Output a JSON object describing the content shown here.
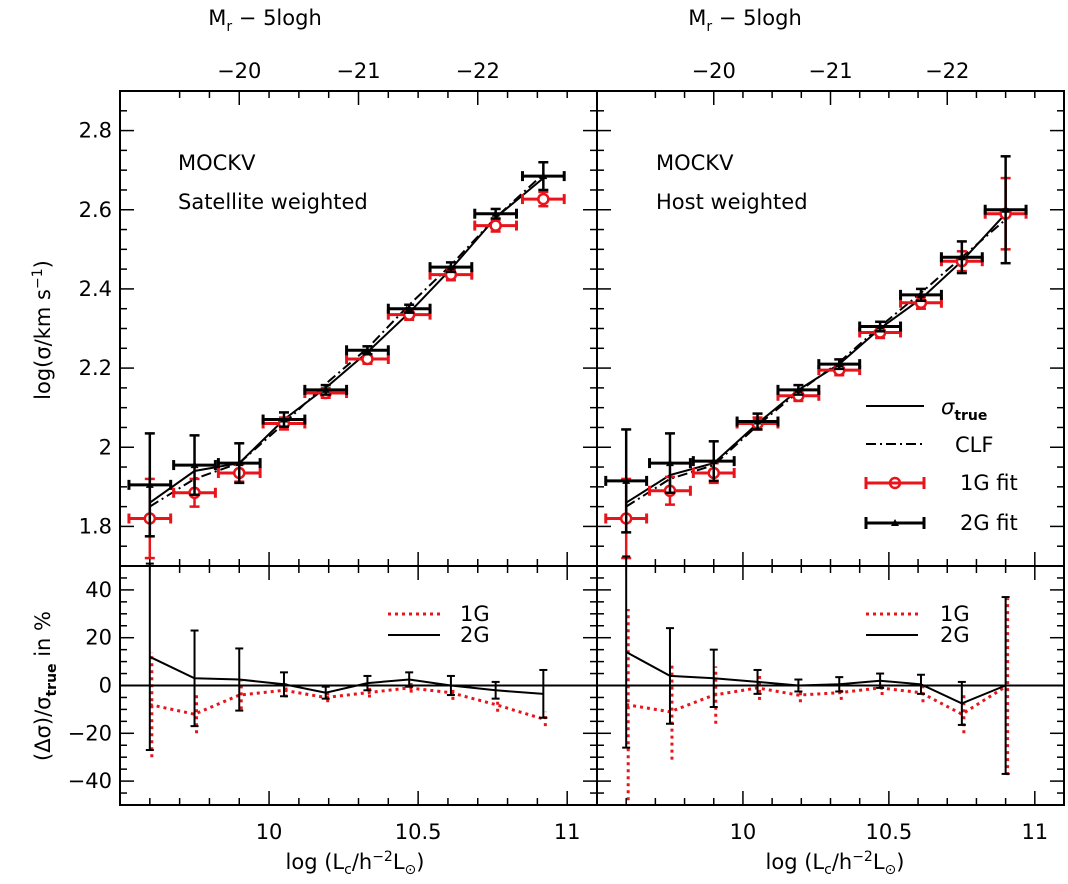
{
  "figure": {
    "top_axis_title": "M",
    "top_axis_title_sub": "r",
    "top_axis_title_rest": " − 5logh",
    "top_ticks": [
      "−20",
      "−21",
      "−22"
    ],
    "bottom_axis_title_pre": "log (L",
    "bottom_axis_title_sub": "c",
    "bottom_axis_title_mid": "/h",
    "bottom_axis_title_sup": "−2",
    "bottom_axis_title_mid2": "L",
    "bottom_axis_title_sub2": "⊙",
    "bottom_axis_title_post": ")",
    "upper_ylabel_pre": "log(σ/km s",
    "upper_ylabel_sup": "−1",
    "upper_ylabel_post": ")",
    "lower_ylabel_pre": "(Δσ)/σ",
    "lower_ylabel_sub": "true",
    "lower_ylabel_post": " in %",
    "panels": [
      {
        "line1": "MOCKV",
        "line2": "Satellite weighted"
      },
      {
        "line1": "MOCKV",
        "line2": "Host weighted"
      }
    ],
    "legend_upper": {
      "sigma_true": "σ",
      "sigma_true_sub": "true",
      "clf": "CLF",
      "fit1": "1G fit",
      "fit2": "2G fit"
    },
    "legend_lower": {
      "a": "1G",
      "b": "2G"
    },
    "colors": {
      "red": "#e8141b",
      "black": "#000000"
    }
  },
  "chart_data": [
    {
      "type": "line",
      "panel": "upper-left",
      "xlim": [
        9.5,
        11.1
      ],
      "ylim": [
        1.7,
        2.9
      ],
      "x_ticks": [
        "10",
        "10.5",
        "11"
      ],
      "y_ticks": [
        "1.8",
        "2",
        "2.2",
        "2.4",
        "2.6",
        "2.8"
      ],
      "top_ticks": [
        "-20",
        "-21",
        "-22"
      ],
      "series": [
        {
          "name": "σtrue",
          "style": "solid",
          "x": [
            9.6,
            9.75,
            9.9,
            10.05,
            10.19,
            10.33,
            10.47,
            10.61,
            10.76,
            10.92
          ],
          "y": [
            1.86,
            1.94,
            1.96,
            2.07,
            2.15,
            2.24,
            2.34,
            2.45,
            2.58,
            2.68
          ]
        },
        {
          "name": "CLF",
          "style": "dashdot",
          "x": [
            9.6,
            9.75,
            9.9,
            10.05,
            10.19,
            10.33,
            10.47,
            10.61,
            10.76,
            10.92
          ],
          "y": [
            1.85,
            1.92,
            1.96,
            2.06,
            2.16,
            2.25,
            2.36,
            2.46,
            2.58,
            2.69
          ]
        },
        {
          "name": "1G fit",
          "style": "errorbar",
          "x": [
            9.6,
            9.75,
            9.9,
            10.05,
            10.19,
            10.33,
            10.47,
            10.61,
            10.76,
            10.92
          ],
          "y": [
            1.82,
            1.885,
            1.935,
            2.06,
            2.137,
            2.223,
            2.335,
            2.436,
            2.56,
            2.627
          ],
          "xerr": [
            0.07,
            0.07,
            0.07,
            0.07,
            0.07,
            0.07,
            0.07,
            0.07,
            0.07,
            0.07
          ],
          "yerr": [
            0.1,
            0.035,
            0.022,
            0.015,
            0.012,
            0.012,
            0.013,
            0.014,
            0.015,
            0.018
          ]
        },
        {
          "name": "2G fit",
          "style": "errorbar",
          "x": [
            9.6,
            9.75,
            9.9,
            10.05,
            10.19,
            10.33,
            10.47,
            10.61,
            10.76,
            10.92
          ],
          "y": [
            1.905,
            1.955,
            1.96,
            2.07,
            2.145,
            2.245,
            2.35,
            2.455,
            2.59,
            2.685
          ],
          "xerr": [
            0.07,
            0.07,
            0.07,
            0.07,
            0.07,
            0.07,
            0.07,
            0.07,
            0.07,
            0.07
          ],
          "yerr": [
            0.13,
            0.075,
            0.05,
            0.018,
            0.012,
            0.01,
            0.01,
            0.012,
            0.012,
            0.035
          ]
        }
      ]
    },
    {
      "type": "line",
      "panel": "upper-right",
      "xlim": [
        9.5,
        11.1
      ],
      "ylim": [
        1.7,
        2.9
      ],
      "x_ticks": [
        "10",
        "10.5",
        "11"
      ],
      "y_ticks": [],
      "top_ticks": [
        "-20",
        "-21",
        "-22"
      ],
      "series": [
        {
          "name": "σtrue",
          "style": "solid",
          "x": [
            9.6,
            9.75,
            9.9,
            10.05,
            10.19,
            10.33,
            10.47,
            10.61,
            10.75,
            10.9
          ],
          "y": [
            1.86,
            1.93,
            1.96,
            2.06,
            2.145,
            2.21,
            2.3,
            2.375,
            2.47,
            2.59
          ]
        },
        {
          "name": "CLF",
          "style": "dashdot",
          "x": [
            9.6,
            9.75,
            9.9,
            10.05,
            10.19,
            10.33,
            10.47,
            10.61,
            10.75,
            10.9
          ],
          "y": [
            1.85,
            1.92,
            1.955,
            2.055,
            2.14,
            2.215,
            2.305,
            2.39,
            2.48,
            2.575
          ]
        },
        {
          "name": "1G fit",
          "style": "errorbar",
          "x": [
            9.6,
            9.75,
            9.9,
            10.05,
            10.19,
            10.33,
            10.47,
            10.61,
            10.75,
            10.9
          ],
          "y": [
            1.82,
            1.89,
            1.935,
            2.06,
            2.13,
            2.195,
            2.29,
            2.365,
            2.47,
            2.59
          ],
          "xerr": [
            0.07,
            0.07,
            0.07,
            0.07,
            0.07,
            0.07,
            0.07,
            0.07,
            0.07,
            0.07
          ],
          "yerr": [
            0.1,
            0.035,
            0.025,
            0.015,
            0.013,
            0.013,
            0.014,
            0.015,
            0.025,
            0.09
          ]
        },
        {
          "name": "2G fit",
          "style": "errorbar",
          "x": [
            9.6,
            9.75,
            9.9,
            10.05,
            10.19,
            10.33,
            10.47,
            10.61,
            10.75,
            10.9
          ],
          "y": [
            1.915,
            1.96,
            1.965,
            2.065,
            2.145,
            2.21,
            2.305,
            2.385,
            2.48,
            2.6
          ],
          "xerr": [
            0.07,
            0.07,
            0.07,
            0.07,
            0.07,
            0.07,
            0.07,
            0.07,
            0.07,
            0.07
          ],
          "yerr": [
            0.13,
            0.075,
            0.05,
            0.02,
            0.012,
            0.012,
            0.012,
            0.015,
            0.04,
            0.135
          ]
        }
      ]
    },
    {
      "type": "line",
      "panel": "lower-left",
      "xlim": [
        9.5,
        11.1
      ],
      "ylim": [
        -50,
        50
      ],
      "x_ticks": [
        "10",
        "10.5",
        "11"
      ],
      "y_ticks": [
        "40",
        "20",
        "0",
        "−20",
        "−40"
      ],
      "series": [
        {
          "name": "1G",
          "style": "dotted",
          "x": [
            9.6,
            9.75,
            9.9,
            10.05,
            10.19,
            10.33,
            10.47,
            10.61,
            10.76,
            10.92
          ],
          "y": [
            -8,
            -12,
            -4,
            -2,
            -5,
            -3,
            -1,
            -3,
            -8,
            -14
          ],
          "yerr": [
            22,
            8,
            6,
            3,
            2,
            2,
            2,
            3,
            3,
            3
          ]
        },
        {
          "name": "2G",
          "style": "solid",
          "x": [
            9.6,
            9.75,
            9.9,
            10.05,
            10.19,
            10.33,
            10.47,
            10.61,
            10.76,
            10.92
          ],
          "y": [
            12,
            3,
            2.5,
            0.5,
            -3,
            1,
            2.5,
            0,
            -2,
            -3.5
          ],
          "yerr": [
            39,
            20,
            13,
            5,
            2.5,
            3,
            3,
            4,
            3.5,
            10
          ]
        },
        {
          "name": "zero",
          "style": "solid",
          "x": [
            9.5,
            11.1
          ],
          "y": [
            0,
            0
          ]
        }
      ]
    },
    {
      "type": "line",
      "panel": "lower-right",
      "xlim": [
        9.5,
        11.1
      ],
      "ylim": [
        -50,
        50
      ],
      "x_ticks": [
        "10",
        "10.5",
        "11"
      ],
      "y_ticks": [],
      "series": [
        {
          "name": "1G",
          "style": "dotted",
          "x": [
            9.6,
            9.75,
            9.9,
            10.05,
            10.19,
            10.33,
            10.47,
            10.61,
            10.75,
            10.9
          ],
          "y": [
            -8,
            -11,
            -4,
            -1,
            -4,
            -3,
            -1,
            -3,
            -12,
            -0.5
          ],
          "yerr": [
            40,
            20,
            12,
            5,
            3,
            3,
            3,
            4,
            8,
            37
          ]
        },
        {
          "name": "2G",
          "style": "solid",
          "x": [
            9.6,
            9.75,
            9.9,
            10.05,
            10.19,
            10.33,
            10.47,
            10.61,
            10.75,
            10.9
          ],
          "y": [
            14,
            4,
            3,
            1.5,
            0,
            0.5,
            2,
            0.5,
            -7.5,
            0
          ],
          "yerr": [
            40,
            20,
            12,
            5,
            2.5,
            3,
            3,
            4,
            9,
            37
          ]
        },
        {
          "name": "zero",
          "style": "solid",
          "x": [
            9.5,
            11.1
          ],
          "y": [
            0,
            0
          ]
        }
      ]
    }
  ]
}
